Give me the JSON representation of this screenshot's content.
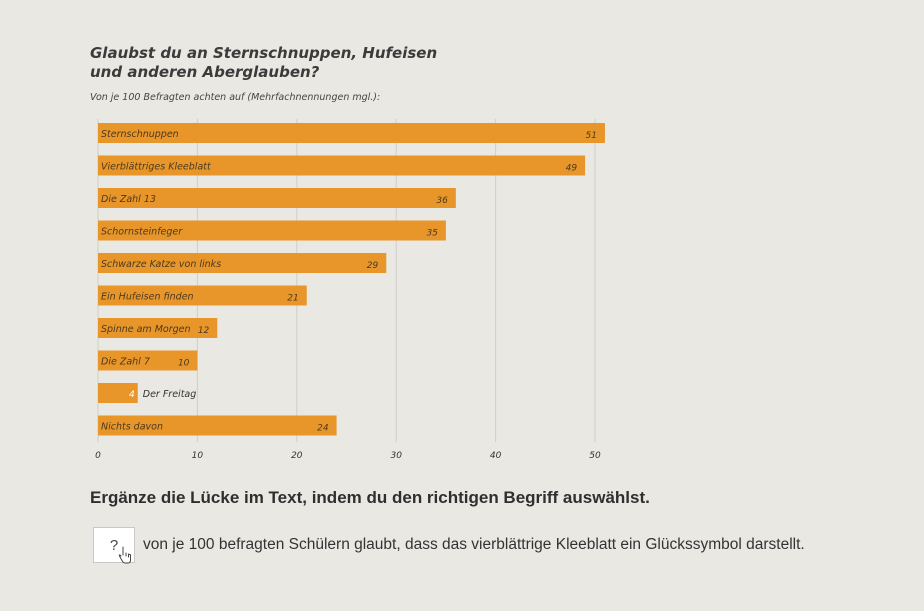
{
  "header": {
    "title": "Glaubst du an Sternschnuppen, Hufeisen und anderen Aberglauben?",
    "subtitle": "Von je 100 Befragten achten auf (Mehrfachnennungen mgl.):"
  },
  "chart_data": {
    "type": "bar",
    "orientation": "horizontal",
    "categories": [
      "Sternschnuppen",
      "Vierblättriges Kleeblatt",
      "Die Zahl 13",
      "Schornsteinfeger",
      "Schwarze Katze von links",
      "Ein Hufeisen finden",
      "Spinne am Morgen",
      "Die Zahl 7",
      "Der Freitag",
      "Nichts davon"
    ],
    "values": [
      51,
      49,
      36,
      35,
      29,
      21,
      12,
      10,
      4,
      24
    ],
    "xlim": [
      0,
      50
    ],
    "xticks": [
      "0",
      "10",
      "20",
      "30",
      "40",
      "50"
    ],
    "bar_color": "#e8962a",
    "grid": true
  },
  "task": {
    "instruction": "Ergänze die Lücke im Text, indem du den richtigen Begriff auswählst.",
    "blank_label": "?",
    "sentence": "von je 100 befragten Schülern glaubt, dass das vierblättrige Kleeblatt ein Glückssymbol darstellt.",
    "cursor_icon": "hand-pointer-icon"
  }
}
